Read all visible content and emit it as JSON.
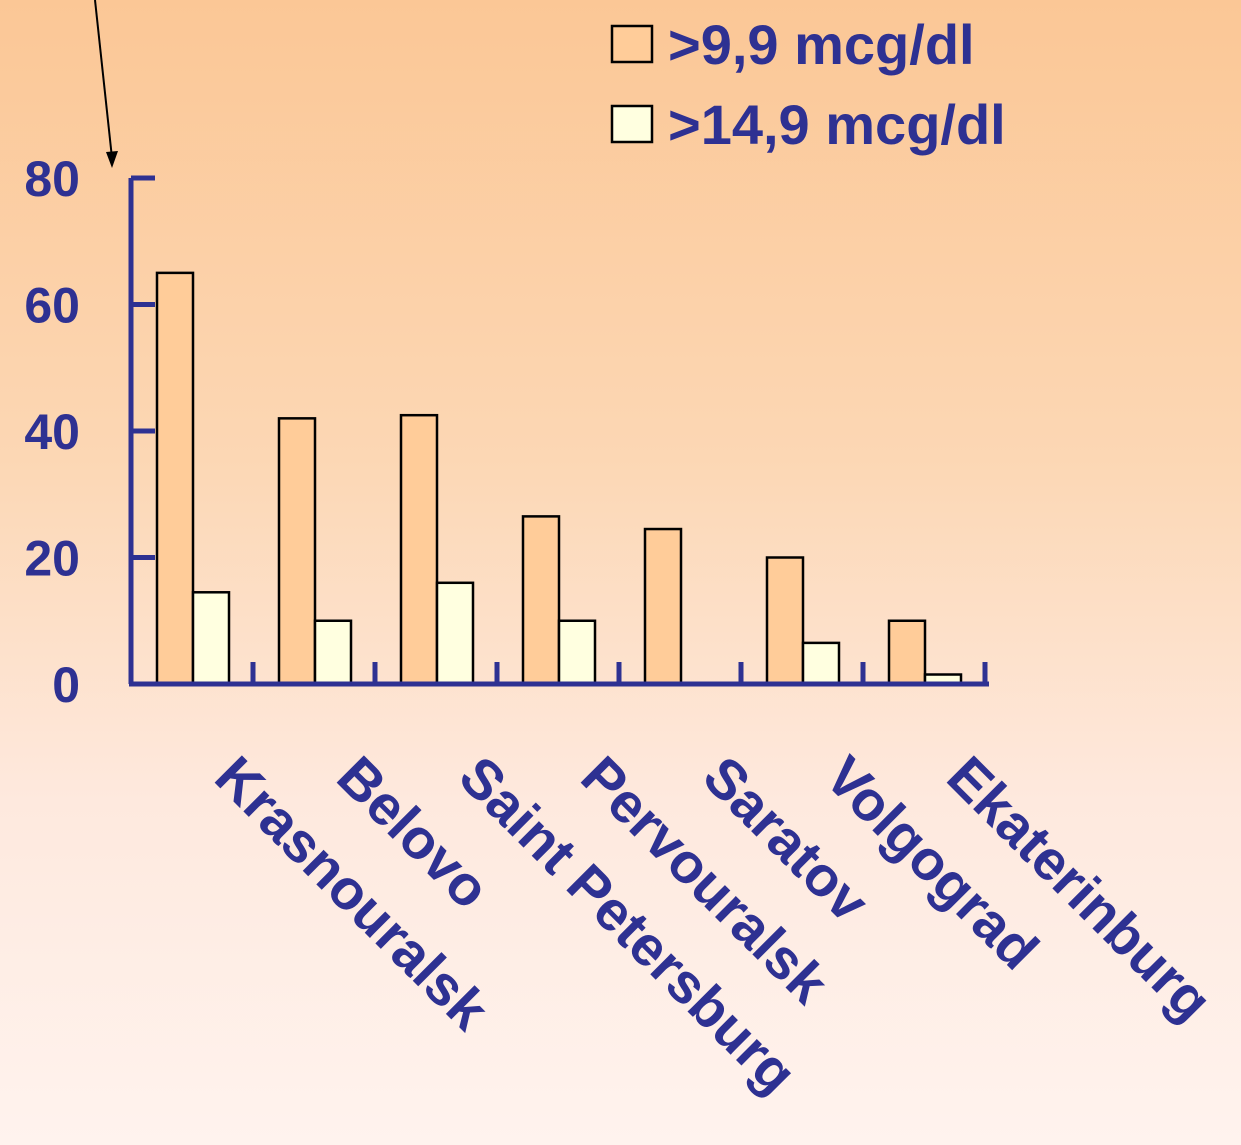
{
  "colors": {
    "axis": "#2e3192",
    "text": "#2e3192",
    "series1": "#ffcc99",
    "series2": "#ffffe0",
    "stroke": "#000000"
  },
  "legend": {
    "items": [
      "&gt;9,9 mcg/dl",
      "&gt;14,9 mcg/dl"
    ]
  },
  "chart_data": {
    "type": "bar",
    "categories": [
      "Krasnouralsk",
      "Belovo",
      "Saint Petersburg",
      "Pervouralsk",
      "Saratov",
      "Volgograd",
      "Ekaterinburg"
    ],
    "series": [
      {
        "name": "&gt;9,9 mcg/dl",
        "values": [
          65,
          42,
          42.5,
          26.5,
          24.5,
          20,
          10
        ]
      },
      {
        "name": "&gt;14,9 mcg/dl",
        "values": [
          14.5,
          10,
          16,
          10,
          0,
          6.5,
          1.5
        ]
      }
    ],
    "yticks": [
      0,
      20,
      40,
      60,
      80
    ],
    "ylim": [
      0,
      80
    ],
    "legend_position": "top-right",
    "grid": false
  }
}
